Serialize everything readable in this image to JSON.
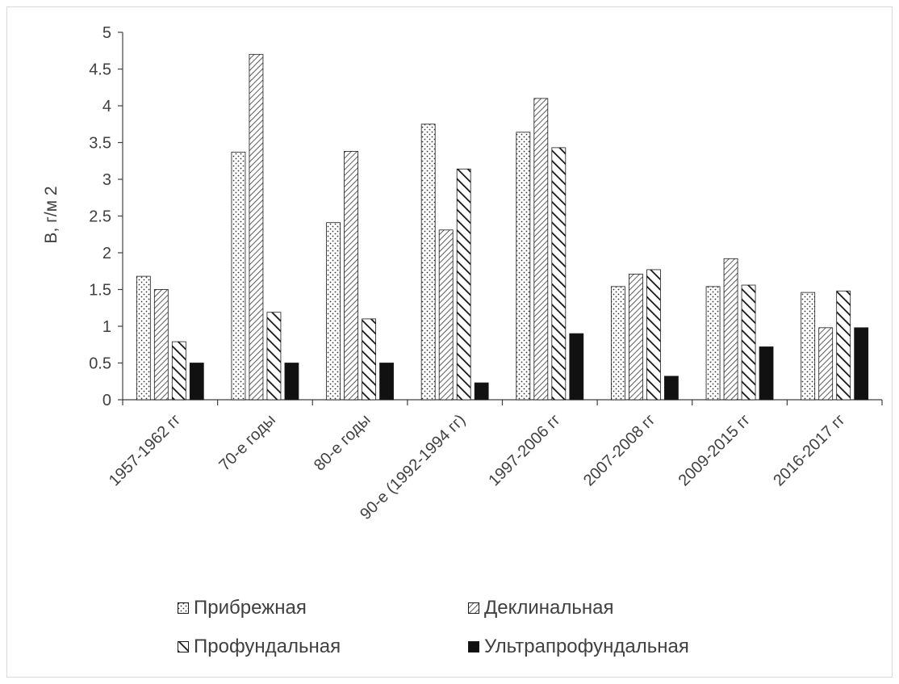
{
  "chart_data": {
    "type": "bar",
    "title": "",
    "xlabel": "",
    "ylabel": "В, г/м 2",
    "ylim": [
      0,
      5
    ],
    "yticks": [
      "0",
      "0.5",
      "1",
      "1.5",
      "2",
      "2.5",
      "3",
      "3.5",
      "4",
      "4.5",
      "5"
    ],
    "grid": false,
    "legend_position": "bottom",
    "categories": [
      "1957-1962 гг",
      "70-е годы",
      "80-е годы",
      "90-е (1992-1994 гг)",
      "1997-2006 гг",
      "2007-2008 гг",
      "2009-2015 гг",
      "2016-2017 гг"
    ],
    "series": [
      {
        "name": "Прибрежная",
        "pattern": "dots",
        "values": [
          1.68,
          3.37,
          2.41,
          3.75,
          3.64,
          1.54,
          1.54,
          1.46
        ]
      },
      {
        "name": "Деклинальная",
        "pattern": "diagonal-forward",
        "values": [
          1.5,
          4.7,
          3.38,
          2.31,
          4.1,
          1.71,
          1.92,
          0.98
        ]
      },
      {
        "name": "Профундальная",
        "pattern": "diagonal-backward",
        "values": [
          0.79,
          1.19,
          1.1,
          3.14,
          3.43,
          1.77,
          1.56,
          1.48
        ]
      },
      {
        "name": "Ультрапрофундальная",
        "pattern": "solid",
        "values": [
          0.5,
          0.5,
          0.5,
          0.23,
          0.9,
          0.32,
          0.72,
          0.98
        ]
      }
    ],
    "colors": {
      "axis": "#404040",
      "bar_outline": "#1a1a1a",
      "solid_fill": "#111111"
    }
  }
}
